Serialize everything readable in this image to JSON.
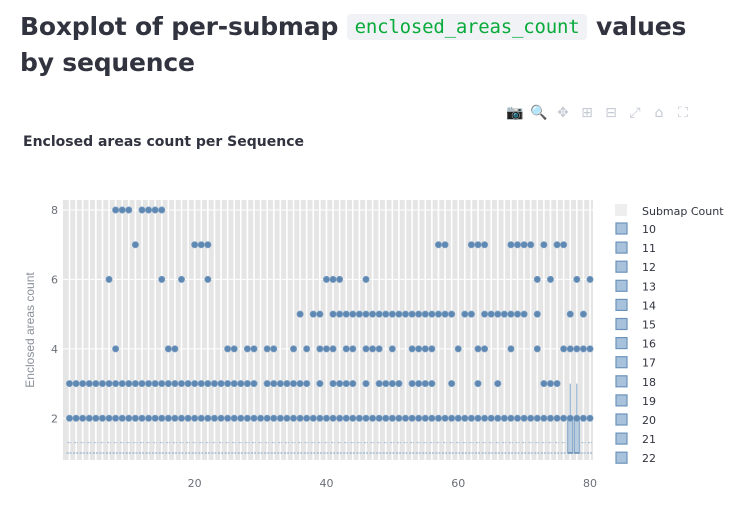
{
  "heading": {
    "prefix": "Boxplot of per-submap",
    "code": "enclosed_areas_count",
    "suffix": "values by sequence"
  },
  "modebar": [
    {
      "icon": "camera-icon",
      "glyph": "📷"
    },
    {
      "icon": "zoom-icon",
      "glyph": "🔍"
    },
    {
      "icon": "pan-icon",
      "glyph": "✥"
    },
    {
      "icon": "zoom-in-icon",
      "glyph": "⊞"
    },
    {
      "icon": "zoom-out-icon",
      "glyph": "⊟"
    },
    {
      "icon": "autoscale-icon",
      "glyph": "⤢"
    },
    {
      "icon": "home-icon",
      "glyph": "⌂"
    },
    {
      "icon": "fullscreen-icon",
      "glyph": "⛶"
    }
  ],
  "chart_data": {
    "type": "box",
    "title": "Enclosed areas count per Sequence",
    "xlabel": "",
    "ylabel": "Enclosed areas count",
    "xlim": [
      1,
      80
    ],
    "ylim": [
      0.6,
      8.3
    ],
    "xticks": [
      20,
      40,
      60,
      80
    ],
    "yticks": [
      2,
      4,
      6,
      8
    ],
    "grid": true,
    "legend_title": "Submap Count",
    "legend_position": "right",
    "series_color": "#7ea3c8",
    "marker_color": "#5f88b3",
    "series": [
      {
        "name": "10"
      },
      {
        "name": "11"
      },
      {
        "name": "12"
      },
      {
        "name": "13"
      },
      {
        "name": "14"
      },
      {
        "name": "15"
      },
      {
        "name": "16"
      },
      {
        "name": "17"
      },
      {
        "name": "18"
      },
      {
        "name": "19"
      },
      {
        "name": "20"
      },
      {
        "name": "21"
      },
      {
        "name": "22"
      }
    ],
    "boxes": [
      {
        "x": 77,
        "q1": 1,
        "median": 1,
        "q3": 2,
        "whisker_low": 1,
        "whisker_high": 3
      },
      {
        "x": 78,
        "q1": 1,
        "median": 1,
        "q3": 2,
        "whisker_low": 1,
        "whisker_high": 3
      }
    ],
    "outliers": [
      {
        "x": 8,
        "y": 8
      },
      {
        "x": 9,
        "y": 8
      },
      {
        "x": 10,
        "y": 8
      },
      {
        "x": 12,
        "y": 8
      },
      {
        "x": 13,
        "y": 8
      },
      {
        "x": 14,
        "y": 8
      },
      {
        "x": 15,
        "y": 8
      },
      {
        "x": 11,
        "y": 7
      },
      {
        "x": 20,
        "y": 7
      },
      {
        "x": 21,
        "y": 7
      },
      {
        "x": 22,
        "y": 7
      },
      {
        "x": 57,
        "y": 7
      },
      {
        "x": 58,
        "y": 7
      },
      {
        "x": 62,
        "y": 7
      },
      {
        "x": 63,
        "y": 7
      },
      {
        "x": 64,
        "y": 7
      },
      {
        "x": 68,
        "y": 7
      },
      {
        "x": 69,
        "y": 7
      },
      {
        "x": 70,
        "y": 7
      },
      {
        "x": 71,
        "y": 7
      },
      {
        "x": 73,
        "y": 7
      },
      {
        "x": 75,
        "y": 7
      },
      {
        "x": 76,
        "y": 7
      },
      {
        "x": 7,
        "y": 6
      },
      {
        "x": 15,
        "y": 6
      },
      {
        "x": 18,
        "y": 6
      },
      {
        "x": 22,
        "y": 6
      },
      {
        "x": 40,
        "y": 6
      },
      {
        "x": 41,
        "y": 6
      },
      {
        "x": 42,
        "y": 6
      },
      {
        "x": 46,
        "y": 6
      },
      {
        "x": 72,
        "y": 6
      },
      {
        "x": 74,
        "y": 6
      },
      {
        "x": 78,
        "y": 6
      },
      {
        "x": 80,
        "y": 6
      },
      {
        "x": 36,
        "y": 5
      },
      {
        "x": 38,
        "y": 5
      },
      {
        "x": 39,
        "y": 5
      },
      {
        "x": 41,
        "y": 5
      },
      {
        "x": 42,
        "y": 5
      },
      {
        "x": 43,
        "y": 5
      },
      {
        "x": 44,
        "y": 5
      },
      {
        "x": 45,
        "y": 5
      },
      {
        "x": 46,
        "y": 5
      },
      {
        "x": 47,
        "y": 5
      },
      {
        "x": 48,
        "y": 5
      },
      {
        "x": 49,
        "y": 5
      },
      {
        "x": 50,
        "y": 5
      },
      {
        "x": 51,
        "y": 5
      },
      {
        "x": 52,
        "y": 5
      },
      {
        "x": 53,
        "y": 5
      },
      {
        "x": 54,
        "y": 5
      },
      {
        "x": 55,
        "y": 5
      },
      {
        "x": 56,
        "y": 5
      },
      {
        "x": 57,
        "y": 5
      },
      {
        "x": 58,
        "y": 5
      },
      {
        "x": 59,
        "y": 5
      },
      {
        "x": 61,
        "y": 5
      },
      {
        "x": 62,
        "y": 5
      },
      {
        "x": 64,
        "y": 5
      },
      {
        "x": 65,
        "y": 5
      },
      {
        "x": 66,
        "y": 5
      },
      {
        "x": 67,
        "y": 5
      },
      {
        "x": 68,
        "y": 5
      },
      {
        "x": 69,
        "y": 5
      },
      {
        "x": 70,
        "y": 5
      },
      {
        "x": 72,
        "y": 5
      },
      {
        "x": 77,
        "y": 5
      },
      {
        "x": 79,
        "y": 5
      },
      {
        "x": 8,
        "y": 4
      },
      {
        "x": 16,
        "y": 4
      },
      {
        "x": 17,
        "y": 4
      },
      {
        "x": 25,
        "y": 4
      },
      {
        "x": 26,
        "y": 4
      },
      {
        "x": 28,
        "y": 4
      },
      {
        "x": 29,
        "y": 4
      },
      {
        "x": 31,
        "y": 4
      },
      {
        "x": 32,
        "y": 4
      },
      {
        "x": 35,
        "y": 4
      },
      {
        "x": 37,
        "y": 4
      },
      {
        "x": 39,
        "y": 4
      },
      {
        "x": 40,
        "y": 4
      },
      {
        "x": 41,
        "y": 4
      },
      {
        "x": 43,
        "y": 4
      },
      {
        "x": 44,
        "y": 4
      },
      {
        "x": 46,
        "y": 4
      },
      {
        "x": 47,
        "y": 4
      },
      {
        "x": 48,
        "y": 4
      },
      {
        "x": 50,
        "y": 4
      },
      {
        "x": 53,
        "y": 4
      },
      {
        "x": 54,
        "y": 4
      },
      {
        "x": 55,
        "y": 4
      },
      {
        "x": 56,
        "y": 4
      },
      {
        "x": 60,
        "y": 4
      },
      {
        "x": 63,
        "y": 4
      },
      {
        "x": 64,
        "y": 4
      },
      {
        "x": 68,
        "y": 4
      },
      {
        "x": 72,
        "y": 4
      },
      {
        "x": 76,
        "y": 4
      },
      {
        "x": 77,
        "y": 4
      },
      {
        "x": 78,
        "y": 4
      },
      {
        "x": 79,
        "y": 4
      },
      {
        "x": 80,
        "y": 4
      }
    ],
    "row3_missing": [
      30,
      38,
      40,
      45,
      47,
      52,
      57,
      58,
      60,
      61,
      62,
      64,
      65,
      67,
      68,
      69,
      70,
      71,
      72,
      76,
      77,
      78,
      79,
      80
    ],
    "row2_all": true
  }
}
